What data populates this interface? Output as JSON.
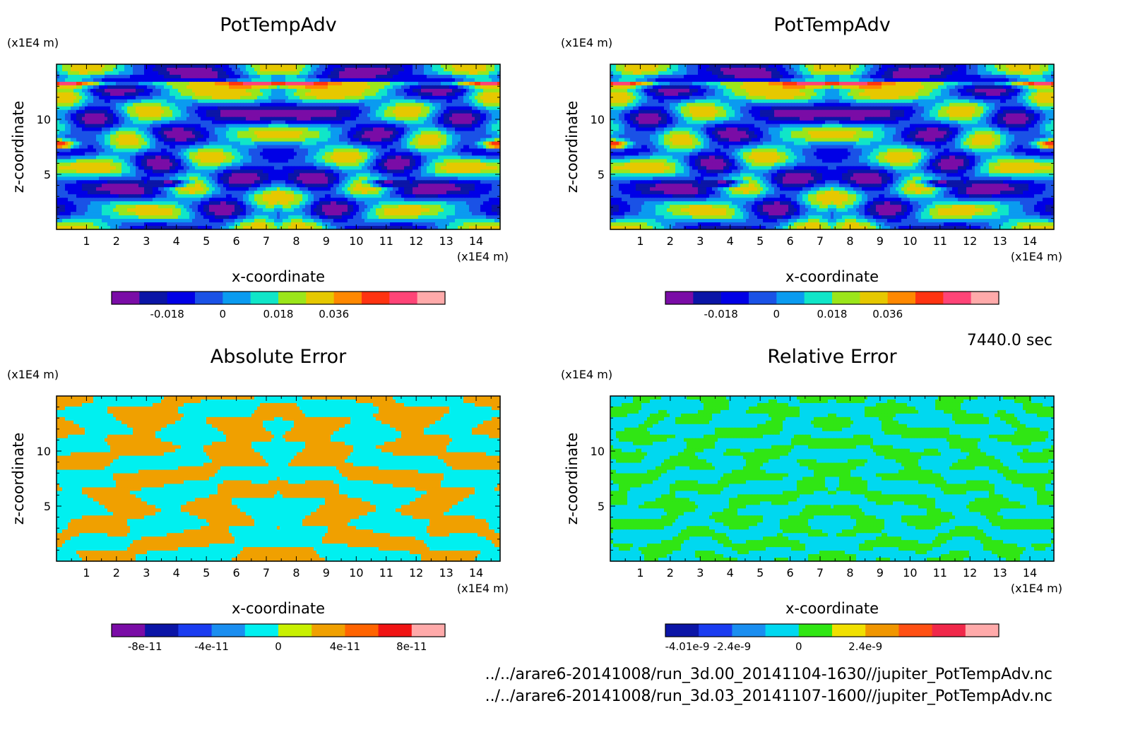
{
  "time_label": "7440.0 sec",
  "files": [
    "../../arare6-20141008/run_3d.00_20141104-1630//jupiter_PotTempAdv.nc",
    "../../arare6-20141008/run_3d.03_20141107-1600//jupiter_PotTempAdv.nc"
  ],
  "chart_data": [
    {
      "type": "heatmap",
      "title": "PotTempAdv",
      "xlabel": "x-coordinate",
      "ylabel": "z-coordinate",
      "x_unit": "(x1E4 m)",
      "y_unit": "(x1E4 m)",
      "xlim": [
        0,
        14.8
      ],
      "ylim": [
        0,
        15
      ],
      "x_ticks": [
        1,
        2,
        3,
        4,
        5,
        6,
        7,
        8,
        9,
        10,
        11,
        12,
        13,
        14
      ],
      "y_ticks": [
        5,
        10
      ],
      "pattern": "field",
      "colorbar": {
        "colors": [
          "#7a0ca6",
          "#0b15a6",
          "#0000e6",
          "#1a52e6",
          "#0a9bf0",
          "#10e6c8",
          "#9be61a",
          "#e6c800",
          "#ff8800",
          "#ff3311",
          "#ff4477",
          "#ffaaaa"
        ],
        "tick_labels": [
          "-0.018",
          "0",
          "0.018",
          "0.036"
        ],
        "tick_values": [
          -0.018,
          0,
          0.018,
          0.036
        ],
        "vmin": -0.036,
        "vmax": 0.072
      }
    },
    {
      "type": "heatmap",
      "title": "PotTempAdv",
      "xlabel": "x-coordinate",
      "ylabel": "z-coordinate",
      "x_unit": "(x1E4 m)",
      "y_unit": "(x1E4 m)",
      "xlim": [
        0,
        14.8
      ],
      "ylim": [
        0,
        15
      ],
      "x_ticks": [
        1,
        2,
        3,
        4,
        5,
        6,
        7,
        8,
        9,
        10,
        11,
        12,
        13,
        14
      ],
      "y_ticks": [
        5,
        10
      ],
      "pattern": "field",
      "colorbar": {
        "colors": [
          "#7a0ca6",
          "#0b15a6",
          "#0000e6",
          "#1a52e6",
          "#0a9bf0",
          "#10e6c8",
          "#9be61a",
          "#e6c800",
          "#ff8800",
          "#ff3311",
          "#ff4477",
          "#ffaaaa"
        ],
        "tick_labels": [
          "-0.018",
          "0",
          "0.018",
          "0.036"
        ],
        "tick_values": [
          -0.018,
          0,
          0.018,
          0.036
        ],
        "vmin": -0.036,
        "vmax": 0.072
      }
    },
    {
      "type": "heatmap",
      "title": "Absolute Error",
      "xlabel": "x-coordinate",
      "ylabel": "z-coordinate",
      "x_unit": "(x1E4 m)",
      "y_unit": "(x1E4 m)",
      "xlim": [
        0,
        14.8
      ],
      "ylim": [
        0,
        15
      ],
      "x_ticks": [
        1,
        2,
        3,
        4,
        5,
        6,
        7,
        8,
        9,
        10,
        11,
        12,
        13,
        14
      ],
      "y_ticks": [
        5,
        10
      ],
      "pattern": "abs",
      "colorbar": {
        "colors": [
          "#7a0ca6",
          "#0b15a6",
          "#1a3cf0",
          "#1a8ef0",
          "#00f0f0",
          "#c8f000",
          "#f0a000",
          "#ff6400",
          "#f01414",
          "#ffaaaa"
        ],
        "tick_labels": [
          "-8e-11",
          "-4e-11",
          "0",
          "4e-11",
          "8e-11"
        ],
        "tick_values": [
          -8,
          -4,
          0,
          4,
          8
        ],
        "vmin": -10,
        "vmax": 10
      }
    },
    {
      "type": "heatmap",
      "title": "Relative Error",
      "xlabel": "x-coordinate",
      "ylabel": "z-coordinate",
      "x_unit": "(x1E4 m)",
      "y_unit": "(x1E4 m)",
      "xlim": [
        0,
        14.8
      ],
      "ylim": [
        0,
        15
      ],
      "x_ticks": [
        1,
        2,
        3,
        4,
        5,
        6,
        7,
        8,
        9,
        10,
        11,
        12,
        13,
        14
      ],
      "y_ticks": [
        5,
        10
      ],
      "pattern": "rel",
      "colorbar": {
        "colors": [
          "#0b15a6",
          "#1a3cf0",
          "#1a8ef0",
          "#00d8f0",
          "#30e614",
          "#f0e000",
          "#f09600",
          "#ff5014",
          "#f0284a",
          "#ffaaaa"
        ],
        "tick_labels": [
          "-4.01e-9",
          "-2.4e-9",
          "0",
          "2.4e-9"
        ],
        "tick_values": [
          -4.01,
          -2.4,
          0,
          2.4
        ],
        "vmin": -4.8,
        "vmax": 7.2
      }
    }
  ]
}
